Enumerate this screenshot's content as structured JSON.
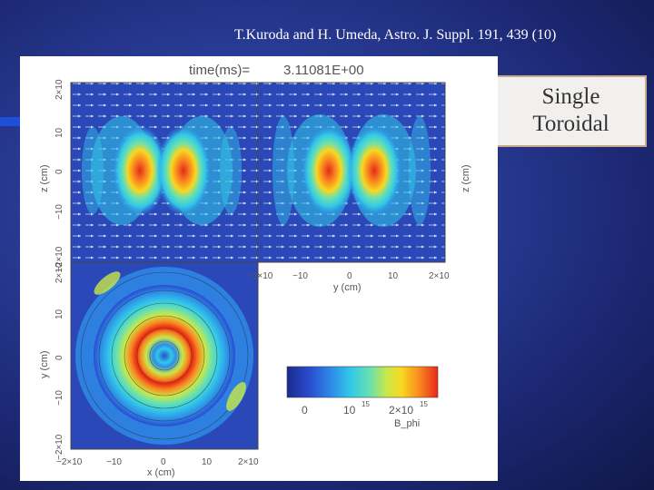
{
  "citation": "T.Kuroda and H. Umeda, Astro. J. Suppl. 191, 439 (10)",
  "label_box": {
    "line1": "Single",
    "line2": "Toroidal"
  },
  "figure": {
    "time_label": "time(ms)=",
    "time_value": "3.11081E+00",
    "top_left_ylabel": "z (cm)",
    "top_right_ylabel": "z (cm)",
    "top_right_xlabel": "y (cm)",
    "bottom_ylabel": "y (cm)",
    "bottom_xlabel": "x (cm)",
    "top_left_yticks": [
      "2×10",
      "10",
      "0",
      "−10",
      "−2×10"
    ],
    "top_right_xticks": [
      "−2×10",
      "−10",
      "0",
      "10",
      "2×10"
    ],
    "bottom_yticks": [
      "2×10",
      "10",
      "0",
      "−10",
      "−2×10"
    ],
    "bottom_xticks": [
      "−2×10",
      "−10",
      "0",
      "10",
      "2×10"
    ],
    "exponent": "6",
    "colorbar": {
      "ticks": [
        "0",
        "10",
        "2×10"
      ],
      "exponent": "15",
      "label": "B_phi",
      "colors": [
        "#1a2b8c",
        "#2a4cd0",
        "#2e8ee8",
        "#32c8e8",
        "#68e0b0",
        "#c8e848",
        "#f8d820",
        "#f88820",
        "#e82818"
      ]
    }
  }
}
